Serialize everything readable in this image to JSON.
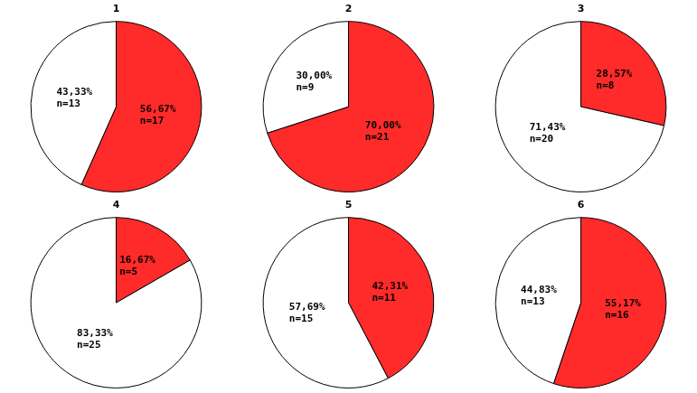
{
  "chart_data": [
    {
      "type": "pie",
      "title": "1",
      "values": [
        56.67,
        43.33
      ],
      "value_labels": [
        "56,67%",
        "43,33%"
      ],
      "count_labels": [
        "n=17",
        "n=13"
      ],
      "colors": [
        "#ff2a2a",
        "#ffffff"
      ],
      "data_labels": true
    },
    {
      "type": "pie",
      "title": "2",
      "values": [
        70.0,
        30.0
      ],
      "value_labels": [
        "70,00%",
        "30,00%"
      ],
      "count_labels": [
        "n=21",
        "n=9"
      ],
      "colors": [
        "#ff2a2a",
        "#ffffff"
      ],
      "data_labels": true
    },
    {
      "type": "pie",
      "title": "3",
      "values": [
        28.57,
        71.43
      ],
      "value_labels": [
        "28,57%",
        "71,43%"
      ],
      "count_labels": [
        "n=8",
        "n=20"
      ],
      "colors": [
        "#ff2a2a",
        "#ffffff"
      ],
      "data_labels": true
    },
    {
      "type": "pie",
      "title": "4",
      "values": [
        16.67,
        83.33
      ],
      "value_labels": [
        "16,67%",
        "83,33%"
      ],
      "count_labels": [
        "n=5",
        "n=25"
      ],
      "colors": [
        "#ff2a2a",
        "#ffffff"
      ],
      "data_labels": true
    },
    {
      "type": "pie",
      "title": "5",
      "values": [
        42.31,
        57.69
      ],
      "value_labels": [
        "42,31%",
        "57,69%"
      ],
      "count_labels": [
        "n=11",
        "n=15"
      ],
      "colors": [
        "#ff2a2a",
        "#ffffff"
      ],
      "data_labels": true
    },
    {
      "type": "pie",
      "title": "6",
      "values": [
        55.17,
        44.83
      ],
      "value_labels": [
        "55,17%",
        "44,83%"
      ],
      "count_labels": [
        "n=16",
        "n=13"
      ],
      "colors": [
        "#ff2a2a",
        "#ffffff"
      ],
      "data_labels": true
    }
  ]
}
